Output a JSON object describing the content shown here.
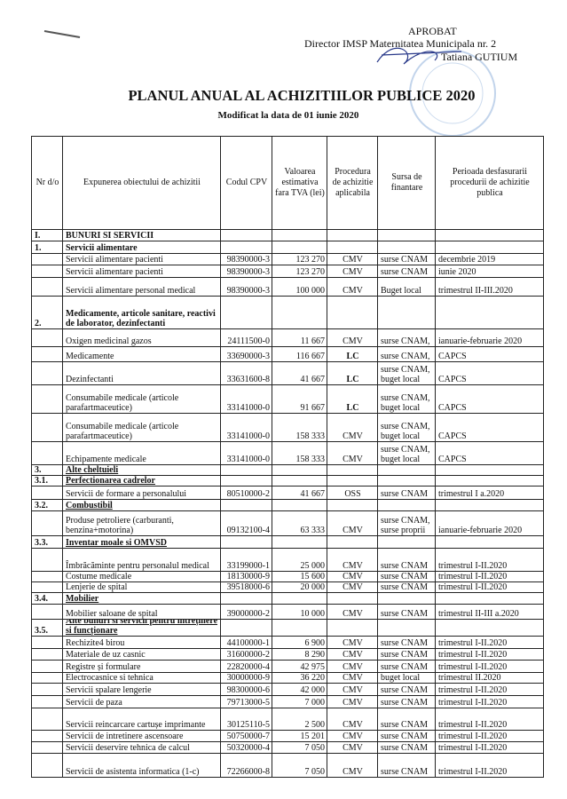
{
  "header": {
    "approval": "APROBAT",
    "director": "Director IMSP Maternitatea Municipala nr. 2",
    "signatory": "Tatiana GUTIUM",
    "title": "PLANUL ANUAL AL ACHIZITIILOR PUBLICE 2020",
    "subtitle": "Modificat la data de 01 iunie 2020"
  },
  "table": {
    "columns": [
      "Nr d/o",
      "Expunerea obiectului de achizitii",
      "Codul CPV",
      "Valoarea estimativa fara TVA (lei)",
      "Procedura de achizitie aplicabila",
      "Sursa de finantare",
      "Perioada desfasurarii procedurii de achizitie publica"
    ],
    "rows": [
      {
        "nr": "I.",
        "title": "BUNURI SI SERVICII"
      },
      {
        "nr": "1.",
        "title": "Servicii alimentare"
      },
      {
        "desc": "Servicii alimentare pacienti",
        "cpv": "98390000-3",
        "value": "123 270",
        "procedure": "CMV",
        "source": "surse CNAM",
        "period": "decembrie 2019"
      },
      {
        "desc": "Servicii alimentare pacienti",
        "cpv": "98390000-3",
        "value": "123 270",
        "procedure": "CMV",
        "source": "surse CNAM",
        "period": "iunie 2020"
      },
      {
        "desc": "Servicii alimentare personal medical",
        "cpv": "98390000-3",
        "value": "100 000",
        "procedure": "CMV",
        "source": "Buget local",
        "period": "trimestrul II-III.2020"
      },
      {
        "nr": "2.",
        "title": "Medicamente, articole sanitare, reactivi de laborator, dezinfectanti"
      },
      {
        "desc": "Oxigen medicinal gazos",
        "cpv": "24111500-0",
        "value": "11 667",
        "procedure": "CMV",
        "source": "surse CNAM,",
        "period": "ianuarie-februarie 2020"
      },
      {
        "desc": "Medicamente",
        "cpv": "33690000-3",
        "value": "116 667",
        "procedure": "LC",
        "source": "surse CNAM,",
        "period": "CAPCS"
      },
      {
        "desc": "Dezinfectanti",
        "cpv": "33631600-8",
        "value": "41 667",
        "procedure": "LC",
        "source": "surse CNAM, buget local",
        "period": "CAPCS"
      },
      {
        "desc": "Consumabile medicale (articole parafartmaceutice)",
        "cpv": "33141000-0",
        "value": "91 667",
        "procedure": "LC",
        "source": "surse CNAM, buget local",
        "period": "CAPCS"
      },
      {
        "desc": "Consumabile medicale (articole parafartmaceutice)",
        "cpv": "33141000-0",
        "value": "158 333",
        "procedure": "CMV",
        "source": "surse CNAM, buget local",
        "period": "CAPCS"
      },
      {
        "desc": "Echipamente medicale",
        "cpv": "33141000-0",
        "value": "158 333",
        "procedure": "CMV",
        "source": "surse CNAM, buget local",
        "period": "CAPCS"
      },
      {
        "nr": "3.",
        "title": "Alte cheltuieli"
      },
      {
        "nr": "3.1.",
        "title": "Perfectionarea cadrelor"
      },
      {
        "desc": "Servicii de formare a personalului",
        "cpv": "80510000-2",
        "value": "41 667",
        "procedure": "OSS",
        "source": "surse CNAM",
        "period": "trimestrul I a.2020"
      },
      {
        "nr": "3.2.",
        "title": "Combustibil"
      },
      {
        "desc": "Produse petroliere (carburanti, benzina+motorina)",
        "cpv": "09132100-4",
        "value": "63 333",
        "procedure": "CMV",
        "source": "surse CNAM, surse proprii",
        "period": "ianuarie-februarie 2020"
      },
      {
        "nr": "3.3.",
        "title": "Inventar moale si OMVSD"
      },
      {
        "desc": "Îmbrăcăminte pentru personalul medical",
        "cpv": "33199000-1",
        "value": "25 000",
        "procedure": "CMV",
        "source": "surse CNAM",
        "period": "trimestrul I-II.2020"
      },
      {
        "desc": "Costume medicale",
        "cpv": "18130000-9",
        "value": "15 600",
        "procedure": "CMV",
        "source": "surse CNAM",
        "period": "trimestrul I-II.2020"
      },
      {
        "desc": "Lenjerie de spital",
        "cpv": "39518000-6",
        "value": "20 000",
        "procedure": "CMV",
        "source": "surse CNAM",
        "period": "trimestrul I-II.2020"
      },
      {
        "nr": "3.4.",
        "title": "Mobilier"
      },
      {
        "desc": "Mobilier saloane de spital",
        "cpv": "39000000-2",
        "value": "10 000",
        "procedure": "CMV",
        "source": "surse CNAM",
        "period": "trimestrul II-III a.2020"
      },
      {
        "nr": "3.5.",
        "title": "Alte bunuri si servicii pentru întreținere si funcționare"
      },
      {
        "desc": "Rechizite4 birou",
        "cpv": "44100000-1",
        "value": "6 900",
        "procedure": "CMV",
        "source": "surse CNAM",
        "period": "trimestrul I-II.2020"
      },
      {
        "desc": "Materiale de uz casnic",
        "cpv": "31600000-2",
        "value": "8 290",
        "procedure": "CMV",
        "source": "surse CNAM",
        "period": "trimestrul I-II.2020"
      },
      {
        "desc": "Registre și formulare",
        "cpv": "22820000-4",
        "value": "42 975",
        "procedure": "CMV",
        "source": "surse CNAM",
        "period": "trimestrul I-II.2020"
      },
      {
        "desc": "Electrocasnice si tehnica",
        "cpv": "30000000-9",
        "value": "36 220",
        "procedure": "CMV",
        "source": "buget local",
        "period": "trimestrul II.2020"
      },
      {
        "desc": "Servicii spalare lengerie",
        "cpv": "98300000-6",
        "value": "42 000",
        "procedure": "CMV",
        "source": "surse CNAM",
        "period": "trimestrul I-II.2020"
      },
      {
        "desc": "Servicii de paza",
        "cpv": "79713000-5",
        "value": "7 000",
        "procedure": "CMV",
        "source": "surse CNAM",
        "period": "trimestrul I-II.2020"
      },
      {
        "desc": "Servicii reincarcare cartușe imprimante",
        "cpv": "30125110-5",
        "value": "2 500",
        "procedure": "CMV",
        "source": "surse CNAM",
        "period": "trimestrul I-II.2020"
      },
      {
        "desc": "Servicii de intretinere ascensoare",
        "cpv": "50750000-7",
        "value": "15 201",
        "procedure": "CMV",
        "source": "surse CNAM",
        "period": "trimestrul I-II.2020"
      },
      {
        "desc": "Servicii deservire tehnica de calcul",
        "cpv": "50320000-4",
        "value": "7 050",
        "procedure": "CMV",
        "source": "surse CNAM",
        "period": "trimestrul I-II.2020"
      },
      {
        "desc": "Servicii de asistenta informatica (1-c)",
        "cpv": "72266000-8",
        "value": "7 050",
        "procedure": "CMV",
        "source": "surse CNAM",
        "period": "trimestrul I-II.2020"
      }
    ]
  }
}
